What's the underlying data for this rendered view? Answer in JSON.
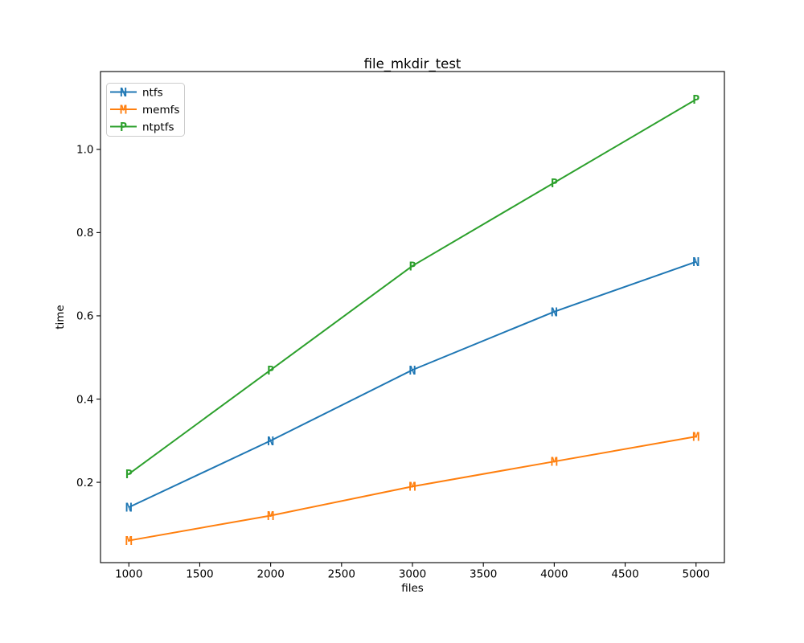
{
  "chart_data": {
    "type": "line",
    "title": "file_mkdir_test",
    "xlabel": "files",
    "ylabel": "time",
    "x": [
      1000,
      2000,
      3000,
      4000,
      5000
    ],
    "series": [
      {
        "name": "ntfs",
        "marker": "N",
        "color": "#1f77b4",
        "values": [
          0.14,
          0.3,
          0.47,
          0.61,
          0.73
        ]
      },
      {
        "name": "memfs",
        "marker": "M",
        "color": "#ff7f0e",
        "values": [
          0.06,
          0.12,
          0.19,
          0.25,
          0.31
        ]
      },
      {
        "name": "ntptfs",
        "marker": "P",
        "color": "#2ca02c",
        "values": [
          0.22,
          0.47,
          0.72,
          0.92,
          1.12
        ]
      }
    ],
    "xlim": [
      800,
      5200
    ],
    "ylim": [
      0.007,
      1.187
    ],
    "xticks": [
      1000,
      1500,
      2000,
      2500,
      3000,
      3500,
      4000,
      4500,
      5000
    ],
    "xtick_labels": [
      "1000",
      "1500",
      "2000",
      "2500",
      "3000",
      "3500",
      "4000",
      "4500",
      "5000"
    ],
    "yticks": [
      0.2,
      0.4,
      0.6,
      0.8,
      1.0
    ],
    "ytick_labels": [
      "0.2",
      "0.4",
      "0.6",
      "0.8",
      "1.0"
    ],
    "grid": false,
    "legend_position": "upper left",
    "colors": {
      "axis": "#000000",
      "legend_border": "#cccccc",
      "background": "#ffffff"
    }
  }
}
